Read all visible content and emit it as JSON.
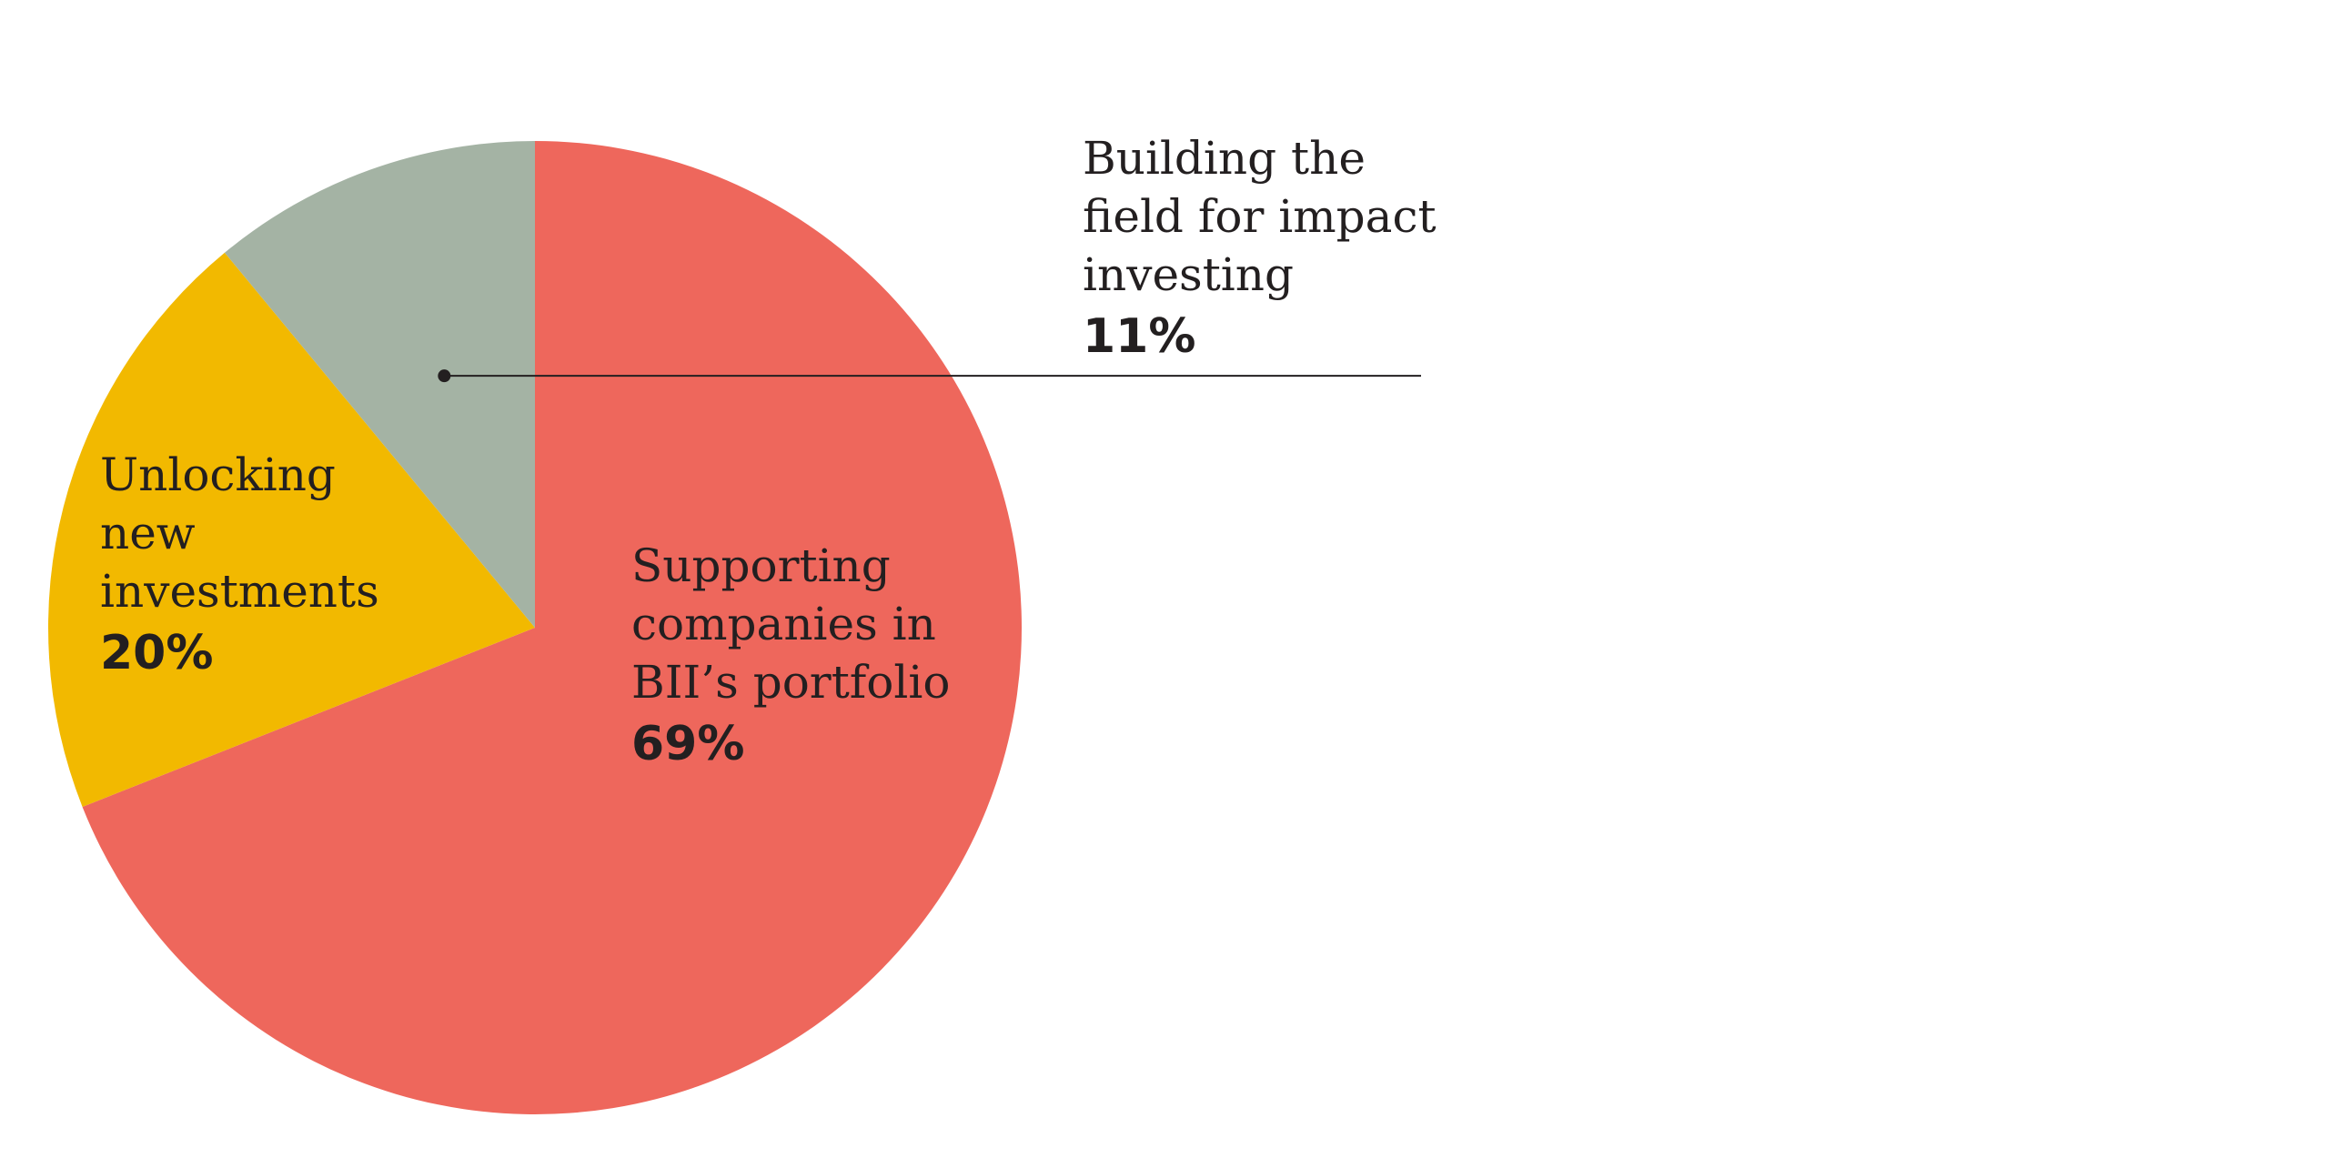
{
  "chart_data": {
    "type": "pie",
    "title": "",
    "start_angle_deg": 0,
    "direction": "clockwise",
    "slices": [
      {
        "label_lines": [
          "Supporting",
          "companies in",
          "BII’s portfolio"
        ],
        "value": 69,
        "value_label": "69%",
        "color": "#ee675c"
      },
      {
        "label_lines": [
          "Unlocking",
          "new",
          "investments"
        ],
        "value": 20,
        "value_label": "20%",
        "color": "#f2b900"
      },
      {
        "label_lines": [
          "Building the",
          "field for impact",
          "investing"
        ],
        "value": 11,
        "value_label": "11%",
        "color": "#a4b3a4"
      }
    ],
    "callout": {
      "slice": 2,
      "line_color": "#231f20"
    },
    "legend": "none"
  }
}
